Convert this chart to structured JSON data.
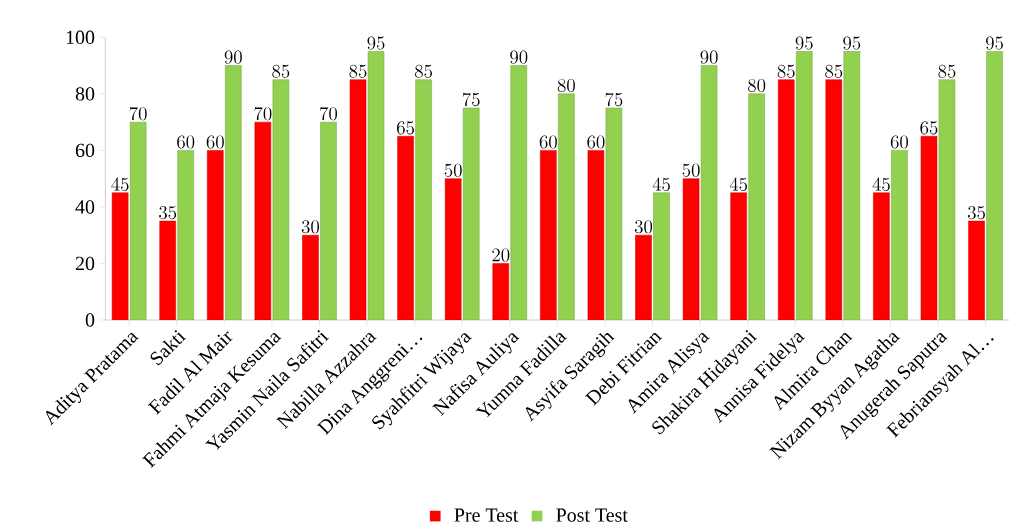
{
  "chart_data": {
    "type": "bar",
    "categories": [
      "Aditya Pratama",
      "Sakti",
      "Fadil Al Mair",
      "Fahmi Atmaja Kesuma",
      "Yasmin Naila Safitri",
      "Nabilla Azzahra",
      "Dina Anggreni…",
      "Syahfitri Wijaya",
      "Nafisa Auliya",
      "Yumna Fadilla",
      "Asyifa Saragih",
      "Debi Fitrian",
      "Amira Alisya",
      "Shakira Hidayani",
      "Annisa Fidelya",
      "Almira Chan",
      "Nizam Byyan Agatha",
      "Anugerah Saputra",
      "Febriansyah Al…"
    ],
    "series": [
      {
        "name": "Pre Test",
        "color": "#ff0000",
        "values": [
          45,
          35,
          60,
          70,
          30,
          85,
          65,
          50,
          20,
          60,
          60,
          30,
          50,
          45,
          85,
          85,
          45,
          65,
          35
        ]
      },
      {
        "name": "Post Test",
        "color": "#92d050",
        "values": [
          70,
          60,
          90,
          85,
          70,
          95,
          85,
          75,
          90,
          80,
          75,
          45,
          90,
          80,
          95,
          95,
          60,
          85,
          95
        ]
      }
    ],
    "ylim": [
      0,
      100
    ],
    "yticks": [
      0,
      20,
      40,
      60,
      80,
      100
    ],
    "data_labels": true,
    "legend": "bottom"
  }
}
